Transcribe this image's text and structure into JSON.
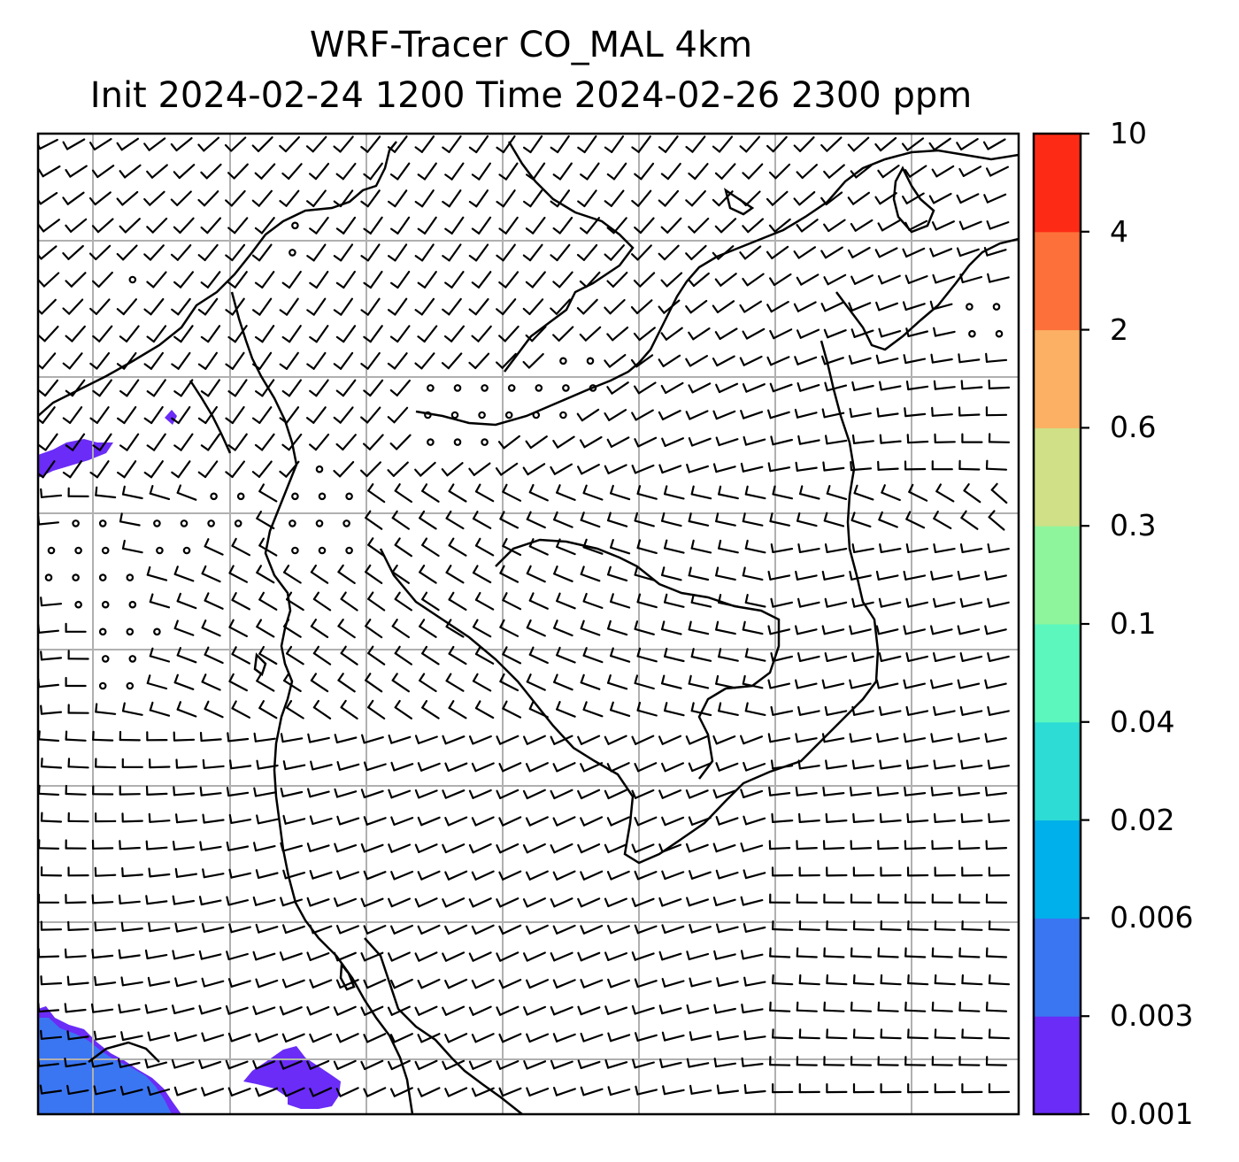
{
  "title": {
    "line1": "WRF-Tracer CO_MAL 4km",
    "line2": "Init 2024-02-24 1200 Time 2024-02-26 2300 ppm"
  },
  "colorbar": {
    "levels": [
      "0.001",
      "0.003",
      "0.006",
      "0.02",
      "0.04",
      "0.1",
      "0.3",
      "0.6",
      "2",
      "4",
      "10"
    ],
    "colors": [
      "#6a2cf6",
      "#3a76f2",
      "#00b0ea",
      "#2ddcd4",
      "#5cf7bd",
      "#8ef59c",
      "#cfe086",
      "#fbb063",
      "#fd7039",
      "#fd2b16"
    ]
  },
  "plumes": [
    {
      "name": "southwest-plume",
      "level": "0.003",
      "color": "#3a76f2"
    },
    {
      "name": "southwest-plume-edge",
      "level": "0.001",
      "color": "#6a2cf6"
    },
    {
      "name": "south-central-plume",
      "level": "0.001",
      "color": "#6a2cf6"
    },
    {
      "name": "northwest-plume",
      "level": "0.001",
      "color": "#6a2cf6"
    }
  ],
  "map": {
    "gridlines": true,
    "wind_symbol": "wind-barb",
    "calm_symbol": "calm-circle",
    "coastline_color": "#000000",
    "gridline_color": "#b0b0b0"
  }
}
